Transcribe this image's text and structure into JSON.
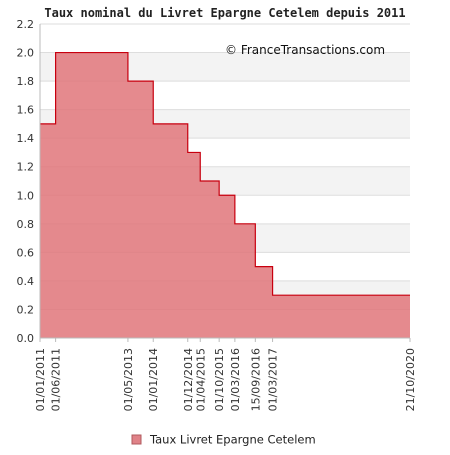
{
  "chart_data": {
    "type": "area",
    "title": "Taux nominal du Livret Epargne Cetelem depuis 2011",
    "watermark": "© FranceTransactions.com",
    "ylim": [
      0,
      2.2
    ],
    "y_ticks": [
      "0.0",
      "0.2",
      "0.4",
      "0.6",
      "0.8",
      "1.0",
      "1.2",
      "1.4",
      "1.6",
      "1.8",
      "2.0",
      "2.2"
    ],
    "x_tick_labels": [
      "01/01/2011",
      "01/06/2011",
      "01/05/2013",
      "01/01/2014",
      "01/12/2014",
      "01/04/2015",
      "01/10/2015",
      "01/03/2016",
      "15/09/2016",
      "01/03/2017",
      "21/10/2020"
    ],
    "series": [
      {
        "name": "Taux Livret Epargne Cetelem",
        "color": "#e0767a",
        "line_color": "#c8000f",
        "step": true,
        "x": [
          "01/01/2011",
          "01/06/2011",
          "01/05/2013",
          "01/01/2014",
          "01/12/2014",
          "01/04/2015",
          "01/10/2015",
          "01/03/2016",
          "15/09/2016",
          "01/03/2017",
          "21/10/2020"
        ],
        "values": [
          1.5,
          2.0,
          1.8,
          1.5,
          1.3,
          1.1,
          1.0,
          0.8,
          0.5,
          0.3,
          0.3
        ]
      }
    ],
    "grid": true,
    "legend_position": "bottom"
  }
}
